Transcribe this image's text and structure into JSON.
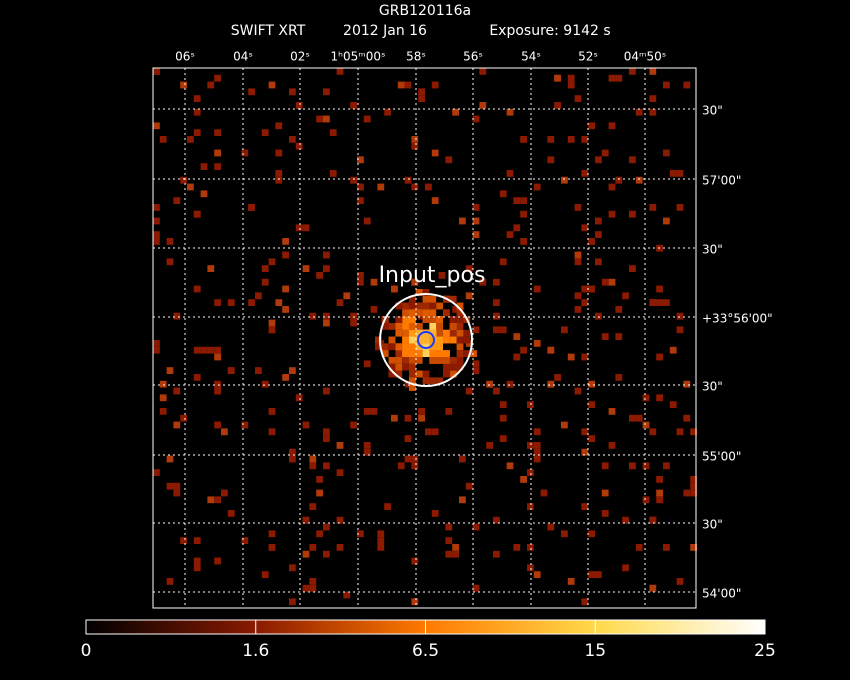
{
  "header": {
    "title": "GRB120116a",
    "instrument": "SWIFT XRT",
    "date": "2012 Jan 16",
    "exposure": "Exposure: 9142 s"
  },
  "ra_labels": [
    "06ˢ",
    "04ˢ",
    "02ˢ",
    "1ʰ05ᵐ00ˢ",
    "58ˢ",
    "56ˢ",
    "54ˢ",
    "52ˢ",
    "04ᵐ50ˢ"
  ],
  "dec_labels": [
    "30\"",
    "57'00\"",
    "30\"",
    "+33°56'00\"",
    "30\"",
    "55'00\"",
    "30\"",
    "54'00\""
  ],
  "source_label": "Input_pos",
  "colorbar": {
    "ticks": [
      0,
      1.6,
      6.5,
      15,
      25
    ]
  }
}
